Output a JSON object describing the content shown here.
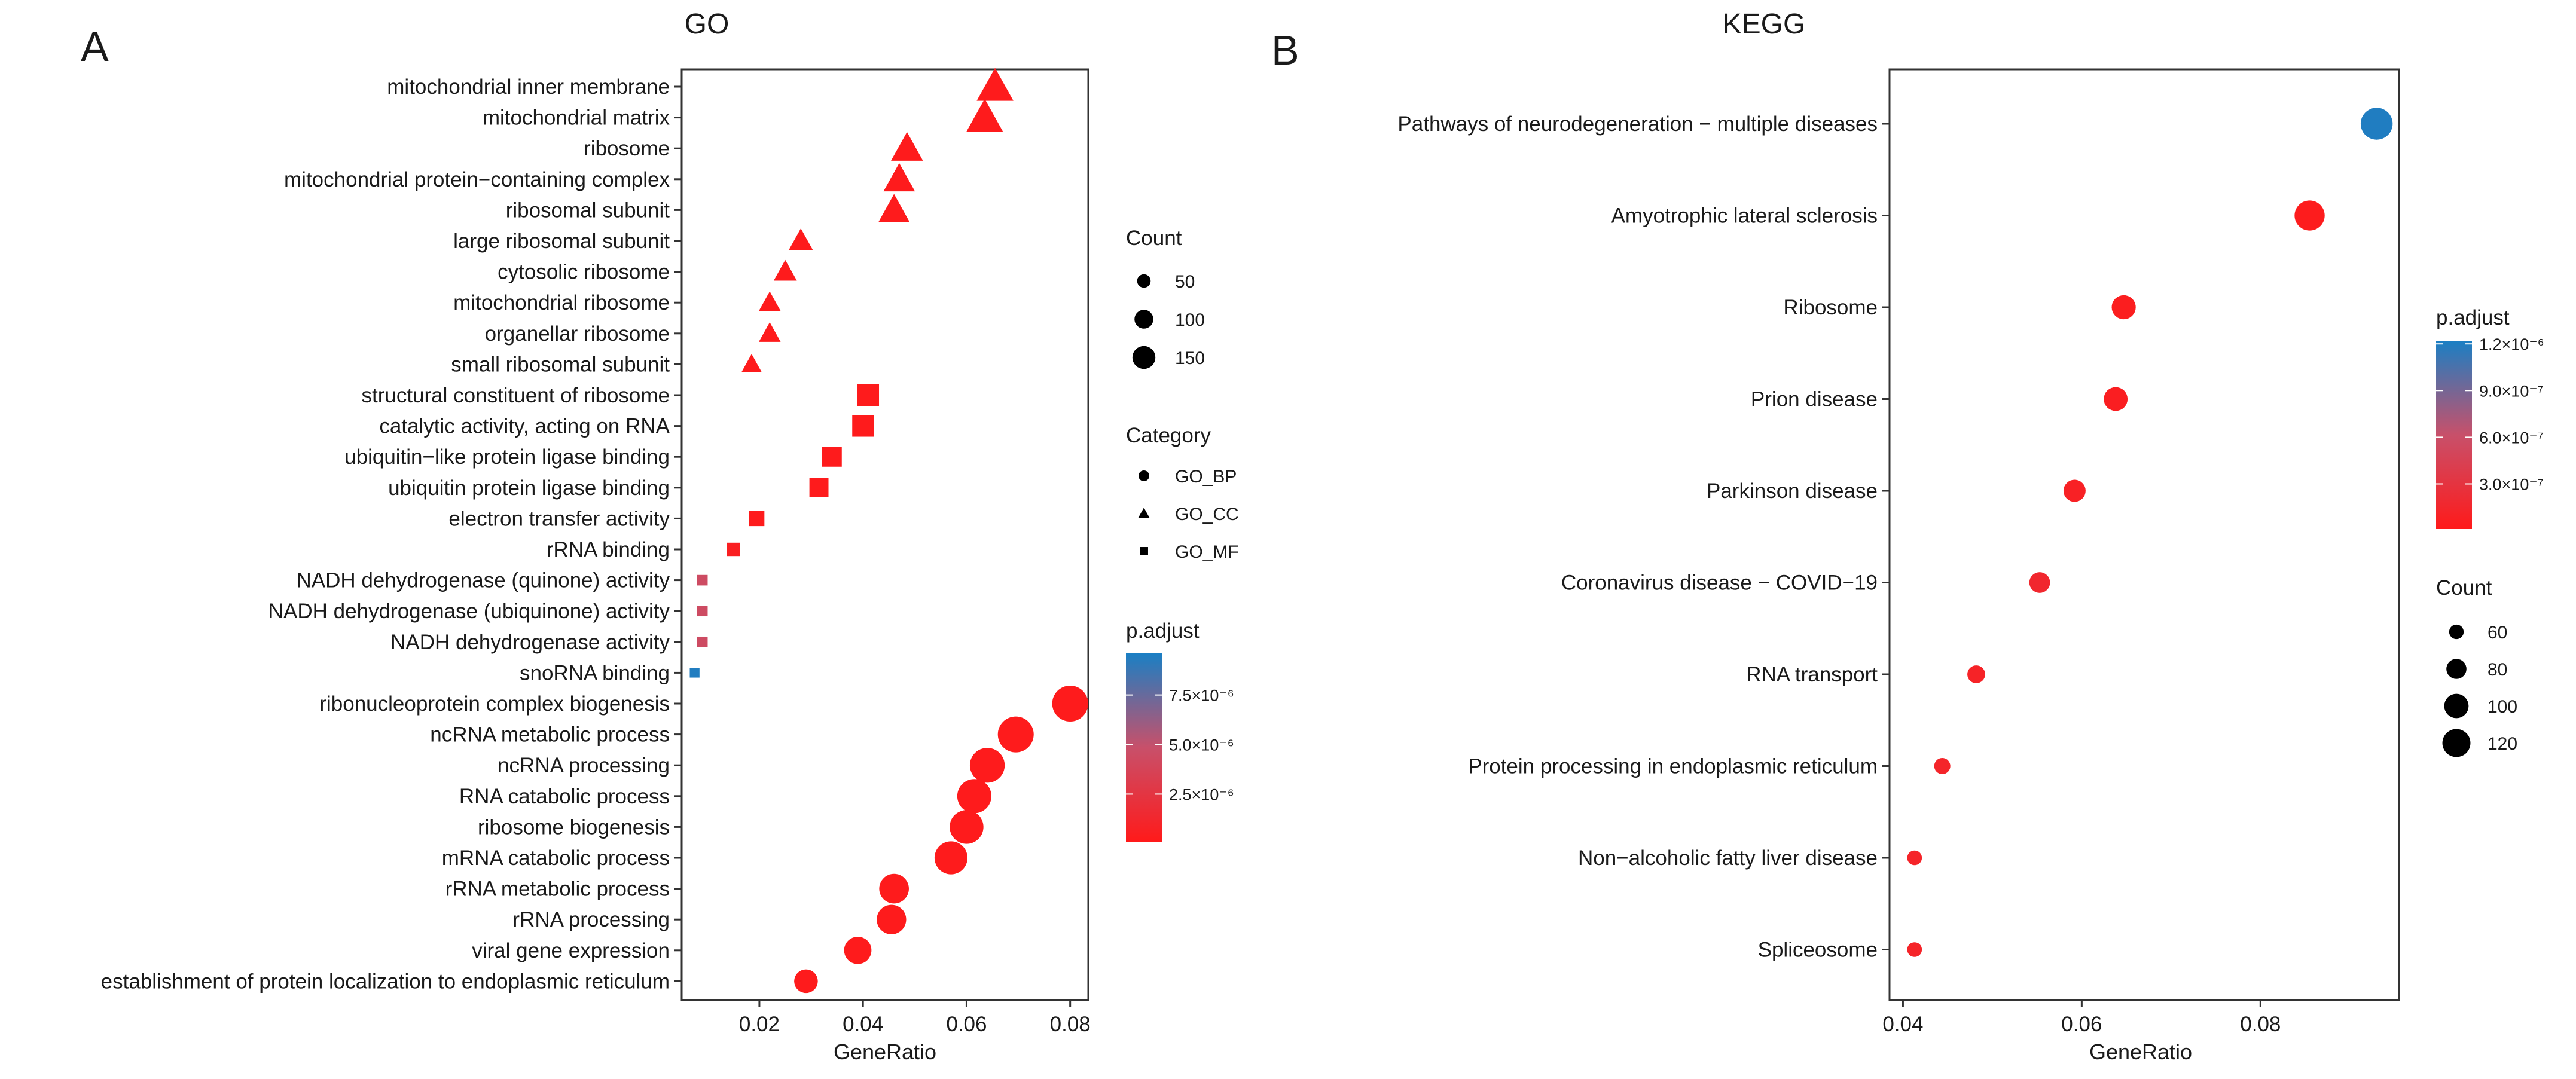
{
  "panels": {
    "go": {
      "letter": "A",
      "title": "GO",
      "xlabel": "GeneRatio"
    },
    "kegg": {
      "letter": "B",
      "title": "KEGG",
      "xlabel": "GeneRatio"
    }
  },
  "colors": {
    "low_padj": "#ff1a1a",
    "high_padj": "#1a7fc4",
    "axis": "#333333",
    "text": "#1a1a1a"
  },
  "chart_data": [
    {
      "id": "go",
      "type": "scatter",
      "title": "GO",
      "xlabel": "GeneRatio",
      "ylabel": "",
      "xlim": [
        0.005,
        0.0835
      ],
      "xticks": [
        0.02,
        0.04,
        0.06,
        0.08
      ],
      "xtick_labels": [
        "0.02",
        "0.04",
        "0.06",
        "0.08"
      ],
      "color_range": [
        1e-07,
        9.6e-06
      ],
      "size_range": [
        5,
        190
      ],
      "grid": false,
      "points": [
        {
          "term": "mitochondrial inner membrane",
          "x": 0.0655,
          "count": 180,
          "padj": 2e-07,
          "category": "GO_CC"
        },
        {
          "term": "mitochondrial matrix",
          "x": 0.0635,
          "count": 178,
          "padj": 2e-07,
          "category": "GO_CC"
        },
        {
          "term": "ribosome",
          "x": 0.0485,
          "count": 136,
          "padj": 2e-07,
          "category": "GO_CC"
        },
        {
          "term": "mitochondrial protein−containing complex",
          "x": 0.047,
          "count": 132,
          "padj": 2e-07,
          "category": "GO_CC"
        },
        {
          "term": "ribosomal subunit",
          "x": 0.046,
          "count": 130,
          "padj": 2e-07,
          "category": "GO_CC"
        },
        {
          "term": "large ribosomal subunit",
          "x": 0.028,
          "count": 78,
          "padj": 2e-07,
          "category": "GO_CC"
        },
        {
          "term": "cytosolic ribosome",
          "x": 0.025,
          "count": 70,
          "padj": 2e-07,
          "category": "GO_CC"
        },
        {
          "term": "mitochondrial ribosome",
          "x": 0.022,
          "count": 62,
          "padj": 2e-07,
          "category": "GO_CC"
        },
        {
          "term": "organellar ribosome",
          "x": 0.022,
          "count": 62,
          "padj": 2e-07,
          "category": "GO_CC"
        },
        {
          "term": "small ribosomal subunit",
          "x": 0.0185,
          "count": 52,
          "padj": 2e-07,
          "category": "GO_CC"
        },
        {
          "term": "structural constituent of ribosome",
          "x": 0.041,
          "count": 115,
          "padj": 2e-07,
          "category": "GO_MF"
        },
        {
          "term": "catalytic activity, acting on RNA",
          "x": 0.04,
          "count": 112,
          "padj": 2e-07,
          "category": "GO_MF"
        },
        {
          "term": "ubiquitin−like protein ligase binding",
          "x": 0.034,
          "count": 95,
          "padj": 2e-07,
          "category": "GO_MF"
        },
        {
          "term": "ubiquitin protein ligase binding",
          "x": 0.0315,
          "count": 88,
          "padj": 2e-07,
          "category": "GO_MF"
        },
        {
          "term": "electron transfer activity",
          "x": 0.0195,
          "count": 55,
          "padj": 2e-07,
          "category": "GO_MF"
        },
        {
          "term": "rRNA binding",
          "x": 0.015,
          "count": 42,
          "padj": 5e-07,
          "category": "GO_MF"
        },
        {
          "term": "NADH dehydrogenase (quinone) activity",
          "x": 0.009,
          "count": 25,
          "padj": 4.4e-06,
          "category": "GO_MF"
        },
        {
          "term": "NADH dehydrogenase (ubiquinone) activity",
          "x": 0.009,
          "count": 25,
          "padj": 4.4e-06,
          "category": "GO_MF"
        },
        {
          "term": "NADH dehydrogenase activity",
          "x": 0.009,
          "count": 25,
          "padj": 4.4e-06,
          "category": "GO_MF"
        },
        {
          "term": "snoRNA binding",
          "x": 0.0075,
          "count": 21,
          "padj": 9.4e-06,
          "category": "GO_MF"
        },
        {
          "term": "ribonucleoprotein complex biogenesis",
          "x": 0.08,
          "count": 224,
          "padj": 2e-07,
          "category": "GO_BP"
        },
        {
          "term": "ncRNA metabolic process",
          "x": 0.0695,
          "count": 195,
          "padj": 2e-07,
          "category": "GO_BP"
        },
        {
          "term": "ncRNA processing",
          "x": 0.064,
          "count": 179,
          "padj": 2e-07,
          "category": "GO_BP"
        },
        {
          "term": "RNA catabolic process",
          "x": 0.0615,
          "count": 172,
          "padj": 2e-07,
          "category": "GO_BP"
        },
        {
          "term": "ribosome biogenesis",
          "x": 0.06,
          "count": 168,
          "padj": 2e-07,
          "category": "GO_BP"
        },
        {
          "term": "mRNA catabolic process",
          "x": 0.057,
          "count": 160,
          "padj": 2e-07,
          "category": "GO_BP"
        },
        {
          "term": "rRNA metabolic process",
          "x": 0.046,
          "count": 129,
          "padj": 2e-07,
          "category": "GO_BP"
        },
        {
          "term": "rRNA processing",
          "x": 0.0455,
          "count": 127,
          "padj": 2e-07,
          "category": "GO_BP"
        },
        {
          "term": "viral gene expression",
          "x": 0.039,
          "count": 109,
          "padj": 2e-07,
          "category": "GO_BP"
        },
        {
          "term": "establishment of protein localization to endoplasmic reticulum",
          "x": 0.029,
          "count": 81,
          "padj": 2e-07,
          "category": "GO_BP"
        }
      ],
      "legends": {
        "count": {
          "title": "Count",
          "values": [
            50,
            100,
            150
          ],
          "labels": [
            "50",
            "100",
            "150"
          ]
        },
        "category": {
          "title": "Category",
          "entries": [
            "GO_BP",
            "GO_CC",
            "GO_MF"
          ]
        },
        "padj": {
          "title": "p.adjust",
          "ticks": [
            2.5e-06,
            5e-06,
            7.5e-06
          ],
          "tick_labels": [
            "2.5×10⁻⁶",
            "5.0×10⁻⁶",
            "7.5×10⁻⁶"
          ]
        }
      }
    },
    {
      "id": "kegg",
      "type": "scatter",
      "title": "KEGG",
      "xlabel": "GeneRatio",
      "ylabel": "",
      "xlim": [
        0.0385,
        0.0955
      ],
      "xticks": [
        0.04,
        0.06,
        0.08
      ],
      "xtick_labels": [
        "0.04",
        "0.06",
        "0.08"
      ],
      "color_range": [
        1e-08,
        1.22e-06
      ],
      "size_range": [
        46,
        130
      ],
      "grid": false,
      "points": [
        {
          "term": "Pathways of neurodegeneration − multiple diseases",
          "x": 0.093,
          "count": 128,
          "padj": 1.2e-06
        },
        {
          "term": "Amyotrophic lateral sclerosis",
          "x": 0.0855,
          "count": 118,
          "padj": 3e-08
        },
        {
          "term": "Ribosome",
          "x": 0.0647,
          "count": 89,
          "padj": 5e-08
        },
        {
          "term": "Prion disease",
          "x": 0.0638,
          "count": 88,
          "padj": 6e-08
        },
        {
          "term": "Parkinson disease",
          "x": 0.0592,
          "count": 81,
          "padj": 9e-08
        },
        {
          "term": "Coronavirus disease − COVID−19",
          "x": 0.0553,
          "count": 76,
          "padj": 1.6e-07
        },
        {
          "term": "RNA transport",
          "x": 0.0482,
          "count": 66,
          "padj": 1.1e-07
        },
        {
          "term": "Protein processing in endoplasmic reticulum",
          "x": 0.0444,
          "count": 61,
          "padj": 1.3e-07
        },
        {
          "term": "Non−alcoholic fatty liver disease",
          "x": 0.0413,
          "count": 57,
          "padj": 1.2e-07
        },
        {
          "term": "Spliceosome",
          "x": 0.0413,
          "count": 57,
          "padj": 1.2e-07
        }
      ],
      "legends": {
        "padj": {
          "title": "p.adjust",
          "ticks": [
            3e-07,
            6e-07,
            9e-07,
            1.2e-06
          ],
          "tick_labels": [
            "3.0×10⁻⁷",
            "6.0×10⁻⁷",
            "9.0×10⁻⁷",
            "1.2×10⁻⁶"
          ]
        },
        "count": {
          "title": "Count",
          "values": [
            60,
            80,
            100,
            120
          ],
          "labels": [
            "60",
            "80",
            "100",
            "120"
          ]
        }
      }
    }
  ]
}
